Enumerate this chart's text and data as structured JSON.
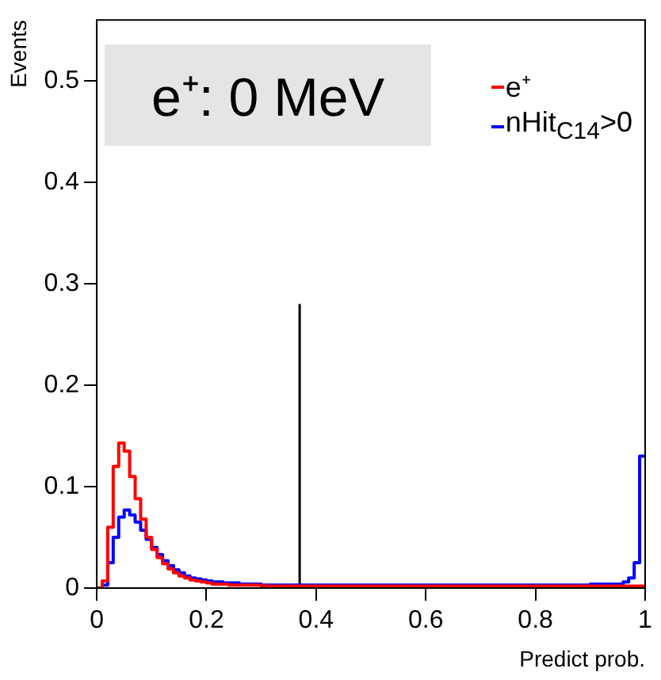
{
  "chart_data": {
    "type": "histogram",
    "xlabel": "Predict prob.",
    "ylabel": "Events",
    "annotations": [
      "e⁺: 0 MeV"
    ],
    "bins": [
      0,
      0.01,
      0.02,
      0.03,
      0.04,
      0.05,
      0.06,
      0.07,
      0.08,
      0.09,
      0.1,
      0.11,
      0.12,
      0.13,
      0.14,
      0.15,
      0.16,
      0.17,
      0.18,
      0.19,
      0.2,
      0.21,
      0.22,
      0.23,
      0.24,
      0.25,
      0.26,
      0.27,
      0.28,
      0.29,
      0.3,
      0.31,
      0.32,
      0.33,
      0.34,
      0.35,
      0.36,
      0.37,
      0.38,
      0.39,
      0.4,
      0.41,
      0.42,
      0.43,
      0.44,
      0.45,
      0.46,
      0.47,
      0.48,
      0.49,
      0.5,
      0.51,
      0.52,
      0.53,
      0.54,
      0.55,
      0.56,
      0.57,
      0.58,
      0.59,
      0.6,
      0.61,
      0.62,
      0.63,
      0.64,
      0.65,
      0.66,
      0.67,
      0.68,
      0.69,
      0.7,
      0.71,
      0.72,
      0.73,
      0.74,
      0.75,
      0.76,
      0.77,
      0.78,
      0.79,
      0.8,
      0.81,
      0.82,
      0.83,
      0.84,
      0.85,
      0.86,
      0.87,
      0.88,
      0.89,
      0.9,
      0.91,
      0.92,
      0.93,
      0.94,
      0.95,
      0.96,
      0.97,
      0.98,
      0.99,
      1
    ],
    "series": [
      {
        "name": "e⁺",
        "color": "#ff0000",
        "values": [
          0,
          0.007,
          0.06,
          0.12,
          0.143,
          0.135,
          0.11,
          0.088,
          0.068,
          0.05,
          0.038,
          0.03,
          0.024,
          0.019,
          0.015,
          0.012,
          0.01,
          0.008,
          0.007,
          0.006,
          0.005,
          0.004,
          0.004,
          0.004,
          0.003,
          0.003,
          0.003,
          0.003,
          0.003,
          0.003,
          0.002,
          0.002,
          0.002,
          0.002,
          0.002,
          0.002,
          0.002,
          0.002,
          0.002,
          0.002,
          0.002,
          0.002,
          0.002,
          0.002,
          0.002,
          0.002,
          0.002,
          0.002,
          0.002,
          0.002,
          0.002,
          0.002,
          0.002,
          0.002,
          0.002,
          0.002,
          0.002,
          0.002,
          0.002,
          0.002,
          0.002,
          0.002,
          0.002,
          0.002,
          0.002,
          0.002,
          0.002,
          0.002,
          0.002,
          0.002,
          0.002,
          0.002,
          0.002,
          0.002,
          0.002,
          0.002,
          0.002,
          0.002,
          0.002,
          0.002,
          0.002,
          0.002,
          0.002,
          0.002,
          0.002,
          0.002,
          0.002,
          0.002,
          0.002,
          0.002,
          0.002,
          0.002,
          0.002,
          0.002,
          0.002,
          0.002,
          0.002,
          0.002,
          0.002,
          0.002
        ]
      },
      {
        "name": "nHit$_{C14}$>0",
        "color": "#0000ff",
        "values": [
          0,
          0.003,
          0.025,
          0.05,
          0.07,
          0.077,
          0.072,
          0.065,
          0.057,
          0.048,
          0.04,
          0.033,
          0.027,
          0.022,
          0.018,
          0.015,
          0.012,
          0.01,
          0.009,
          0.008,
          0.007,
          0.006,
          0.006,
          0.005,
          0.005,
          0.005,
          0.004,
          0.004,
          0.004,
          0.004,
          0.003,
          0.003,
          0.003,
          0.003,
          0.003,
          0.003,
          0.003,
          0.003,
          0.003,
          0.003,
          0.003,
          0.003,
          0.003,
          0.003,
          0.003,
          0.003,
          0.003,
          0.003,
          0.003,
          0.003,
          0.003,
          0.003,
          0.003,
          0.003,
          0.003,
          0.003,
          0.003,
          0.003,
          0.003,
          0.003,
          0.003,
          0.003,
          0.003,
          0.003,
          0.003,
          0.003,
          0.003,
          0.003,
          0.003,
          0.003,
          0.003,
          0.003,
          0.003,
          0.003,
          0.003,
          0.003,
          0.003,
          0.003,
          0.003,
          0.003,
          0.003,
          0.003,
          0.003,
          0.003,
          0.003,
          0.003,
          0.003,
          0.003,
          0.003,
          0.003,
          0.004,
          0.004,
          0.004,
          0.004,
          0.004,
          0.004,
          0.006,
          0.01,
          0.025,
          0.13
        ]
      },
      {
        "type": "line",
        "color": "#000000",
        "x": [
          0.37,
          0.37
        ],
        "values": [
          0,
          0.28
        ]
      }
    ],
    "xlim": [
      0,
      1
    ],
    "xticks": [
      0,
      0.2,
      0.4,
      0.6,
      0.8,
      1
    ],
    "ylim": [
      0,
      0.56
    ],
    "yticks": [
      0,
      0.1,
      0.2,
      0.3,
      0.4,
      0.5
    ],
    "grid": false,
    "legend": "top right"
  }
}
